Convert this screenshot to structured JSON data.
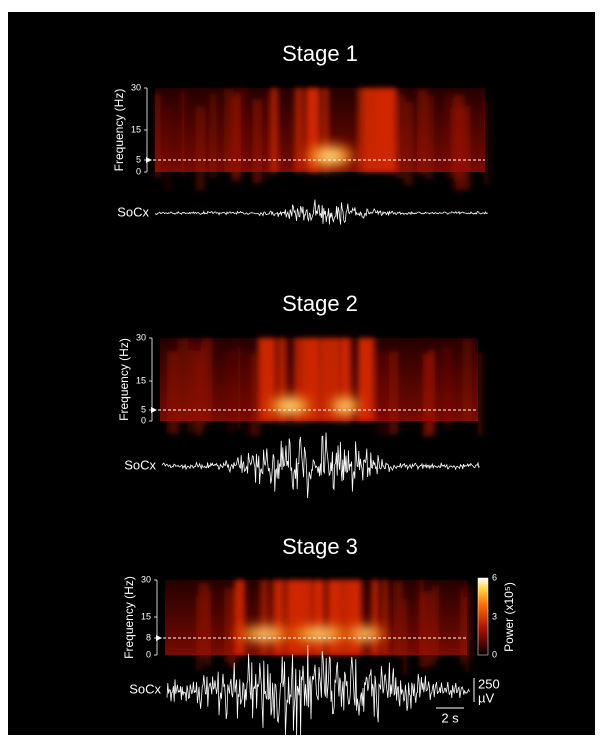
{
  "panels": [
    {
      "title": "Stage 1",
      "axis_label": "Frequency (Hz)",
      "ticks": [
        "30",
        "15",
        "5",
        "0"
      ],
      "trace_label": "SoCx"
    },
    {
      "title": "Stage 2",
      "axis_label": "Frequency (Hz)",
      "ticks": [
        "30",
        "15",
        "5",
        "0"
      ],
      "trace_label": "SoCx"
    },
    {
      "title": "Stage 3",
      "axis_label": "Frequency (Hz)",
      "ticks": [
        "30",
        "15",
        "8",
        "0"
      ],
      "trace_label": "SoCx"
    }
  ],
  "colorbar": {
    "label": "Power (x10⁵)",
    "ticks": [
      "6",
      "3",
      "0"
    ]
  },
  "scale_bars": {
    "amplitude": "250",
    "amplitude_unit": "µV",
    "time": "2 s"
  }
}
